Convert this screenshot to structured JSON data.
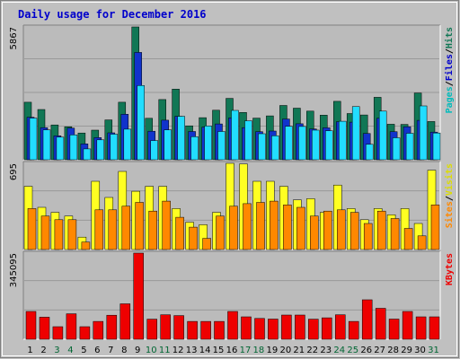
{
  "chart_data": {
    "type": "bar",
    "title": "Daily usage for December 2016",
    "categories": [
      "1",
      "2",
      "3",
      "4",
      "5",
      "6",
      "7",
      "8",
      "9",
      "10",
      "11",
      "12",
      "13",
      "14",
      "15",
      "16",
      "17",
      "18",
      "19",
      "20",
      "21",
      "22",
      "23",
      "24",
      "25",
      "26",
      "27",
      "28",
      "29",
      "30",
      "31"
    ],
    "weekend_days": [
      "3",
      "4",
      "10",
      "11",
      "17",
      "18",
      "24",
      "25",
      "31"
    ],
    "colors": {
      "frame_bg": "#c0c0c0",
      "plot_bg": "#bbbbbb",
      "title": "#0000cc",
      "weekday_label": "#000000",
      "weekend_label": "#006633",
      "hits": "#117755",
      "files": "#1133cc",
      "pages": "#22ddff",
      "visits": "#ffff22",
      "sites": "#ff8800",
      "kbytes": "#ee0000"
    },
    "panels": [
      {
        "id": "hits_files_pages",
        "ymax_label": "5867",
        "ylim": [
          0,
          5867
        ],
        "legend": [
          {
            "text": "Pages",
            "color": "#00bbbb"
          },
          {
            "text": "/",
            "color": "#000000"
          },
          {
            "text": "Files",
            "color": "#0000cc"
          },
          {
            "text": "/",
            "color": "#000000"
          },
          {
            "text": "Hits",
            "color": "#117755"
          }
        ],
        "series": [
          {
            "name": "Hits",
            "values": [
              2540,
              2220,
              1540,
              1460,
              1180,
              1310,
              1760,
              2540,
              5867,
              1830,
              2660,
              3120,
              1500,
              1860,
              2190,
              2710,
              2090,
              1840,
              1940,
              2400,
              2280,
              2150,
              1970,
              2580,
              2040,
              1980,
              2760,
              1570,
              1560,
              2950,
              1690
            ]
          },
          {
            "name": "Files",
            "values": [
              1880,
              1420,
              1060,
              1400,
              700,
              980,
              1190,
              2010,
              4740,
              1260,
              1750,
              1920,
              1250,
              1440,
              1580,
              1850,
              1420,
              1240,
              1270,
              1800,
              1590,
              1360,
              1410,
              1680,
              1660,
              1160,
              1830,
              1240,
              1460,
              1740,
              1220
            ]
          },
          {
            "name": "Pages",
            "values": [
              1840,
              1320,
              1000,
              1100,
              480,
              880,
              1130,
              1350,
              3280,
              850,
              1320,
              1920,
              1020,
              1490,
              1250,
              2180,
              1720,
              1150,
              1060,
              1480,
              1470,
              1310,
              1280,
              1700,
              2350,
              680,
              2150,
              970,
              1170,
              2380,
              1180
            ]
          }
        ]
      },
      {
        "id": "visits_sites",
        "ymax_label": "695",
        "ylim": [
          0,
          695
        ],
        "legend": [
          {
            "text": "Sites",
            "color": "#ff8800"
          },
          {
            "text": "/",
            "color": "#000000"
          },
          {
            "text": "Visits",
            "color": "#dddd00"
          }
        ],
        "series": [
          {
            "name": "Visits",
            "values": [
              510,
              340,
              300,
              270,
              100,
              550,
              420,
              630,
              470,
              510,
              510,
              330,
              220,
              200,
              300,
              695,
              690,
              550,
              550,
              510,
              400,
              410,
              300,
              520,
              330,
              240,
              330,
              280,
              330,
              210,
              640
            ]
          },
          {
            "name": "Sites",
            "values": [
              330,
              270,
              240,
              240,
              60,
              320,
              320,
              350,
              380,
              310,
              390,
              260,
              180,
              90,
              270,
              350,
              370,
              380,
              390,
              360,
              340,
              270,
              310,
              320,
              300,
              210,
              310,
              250,
              170,
              110,
              360
            ]
          }
        ]
      },
      {
        "id": "kbytes",
        "ymax_label": "345095",
        "ylim": [
          0,
          345095
        ],
        "legend": [
          {
            "text": "KBytes",
            "color": "#ee0000"
          }
        ],
        "series": [
          {
            "name": "KBytes",
            "values": [
              111500,
              88500,
              50500,
              102000,
              50500,
              71500,
              96500,
              142000,
              345095,
              80500,
              98000,
              95000,
              71500,
              71500,
              71500,
              111500,
              90000,
              83500,
              81000,
              97000,
              97000,
              80500,
              86000,
              98000,
              71500,
              158000,
              124000,
              81000,
              111500,
              90000,
              90000
            ]
          }
        ]
      }
    ]
  }
}
